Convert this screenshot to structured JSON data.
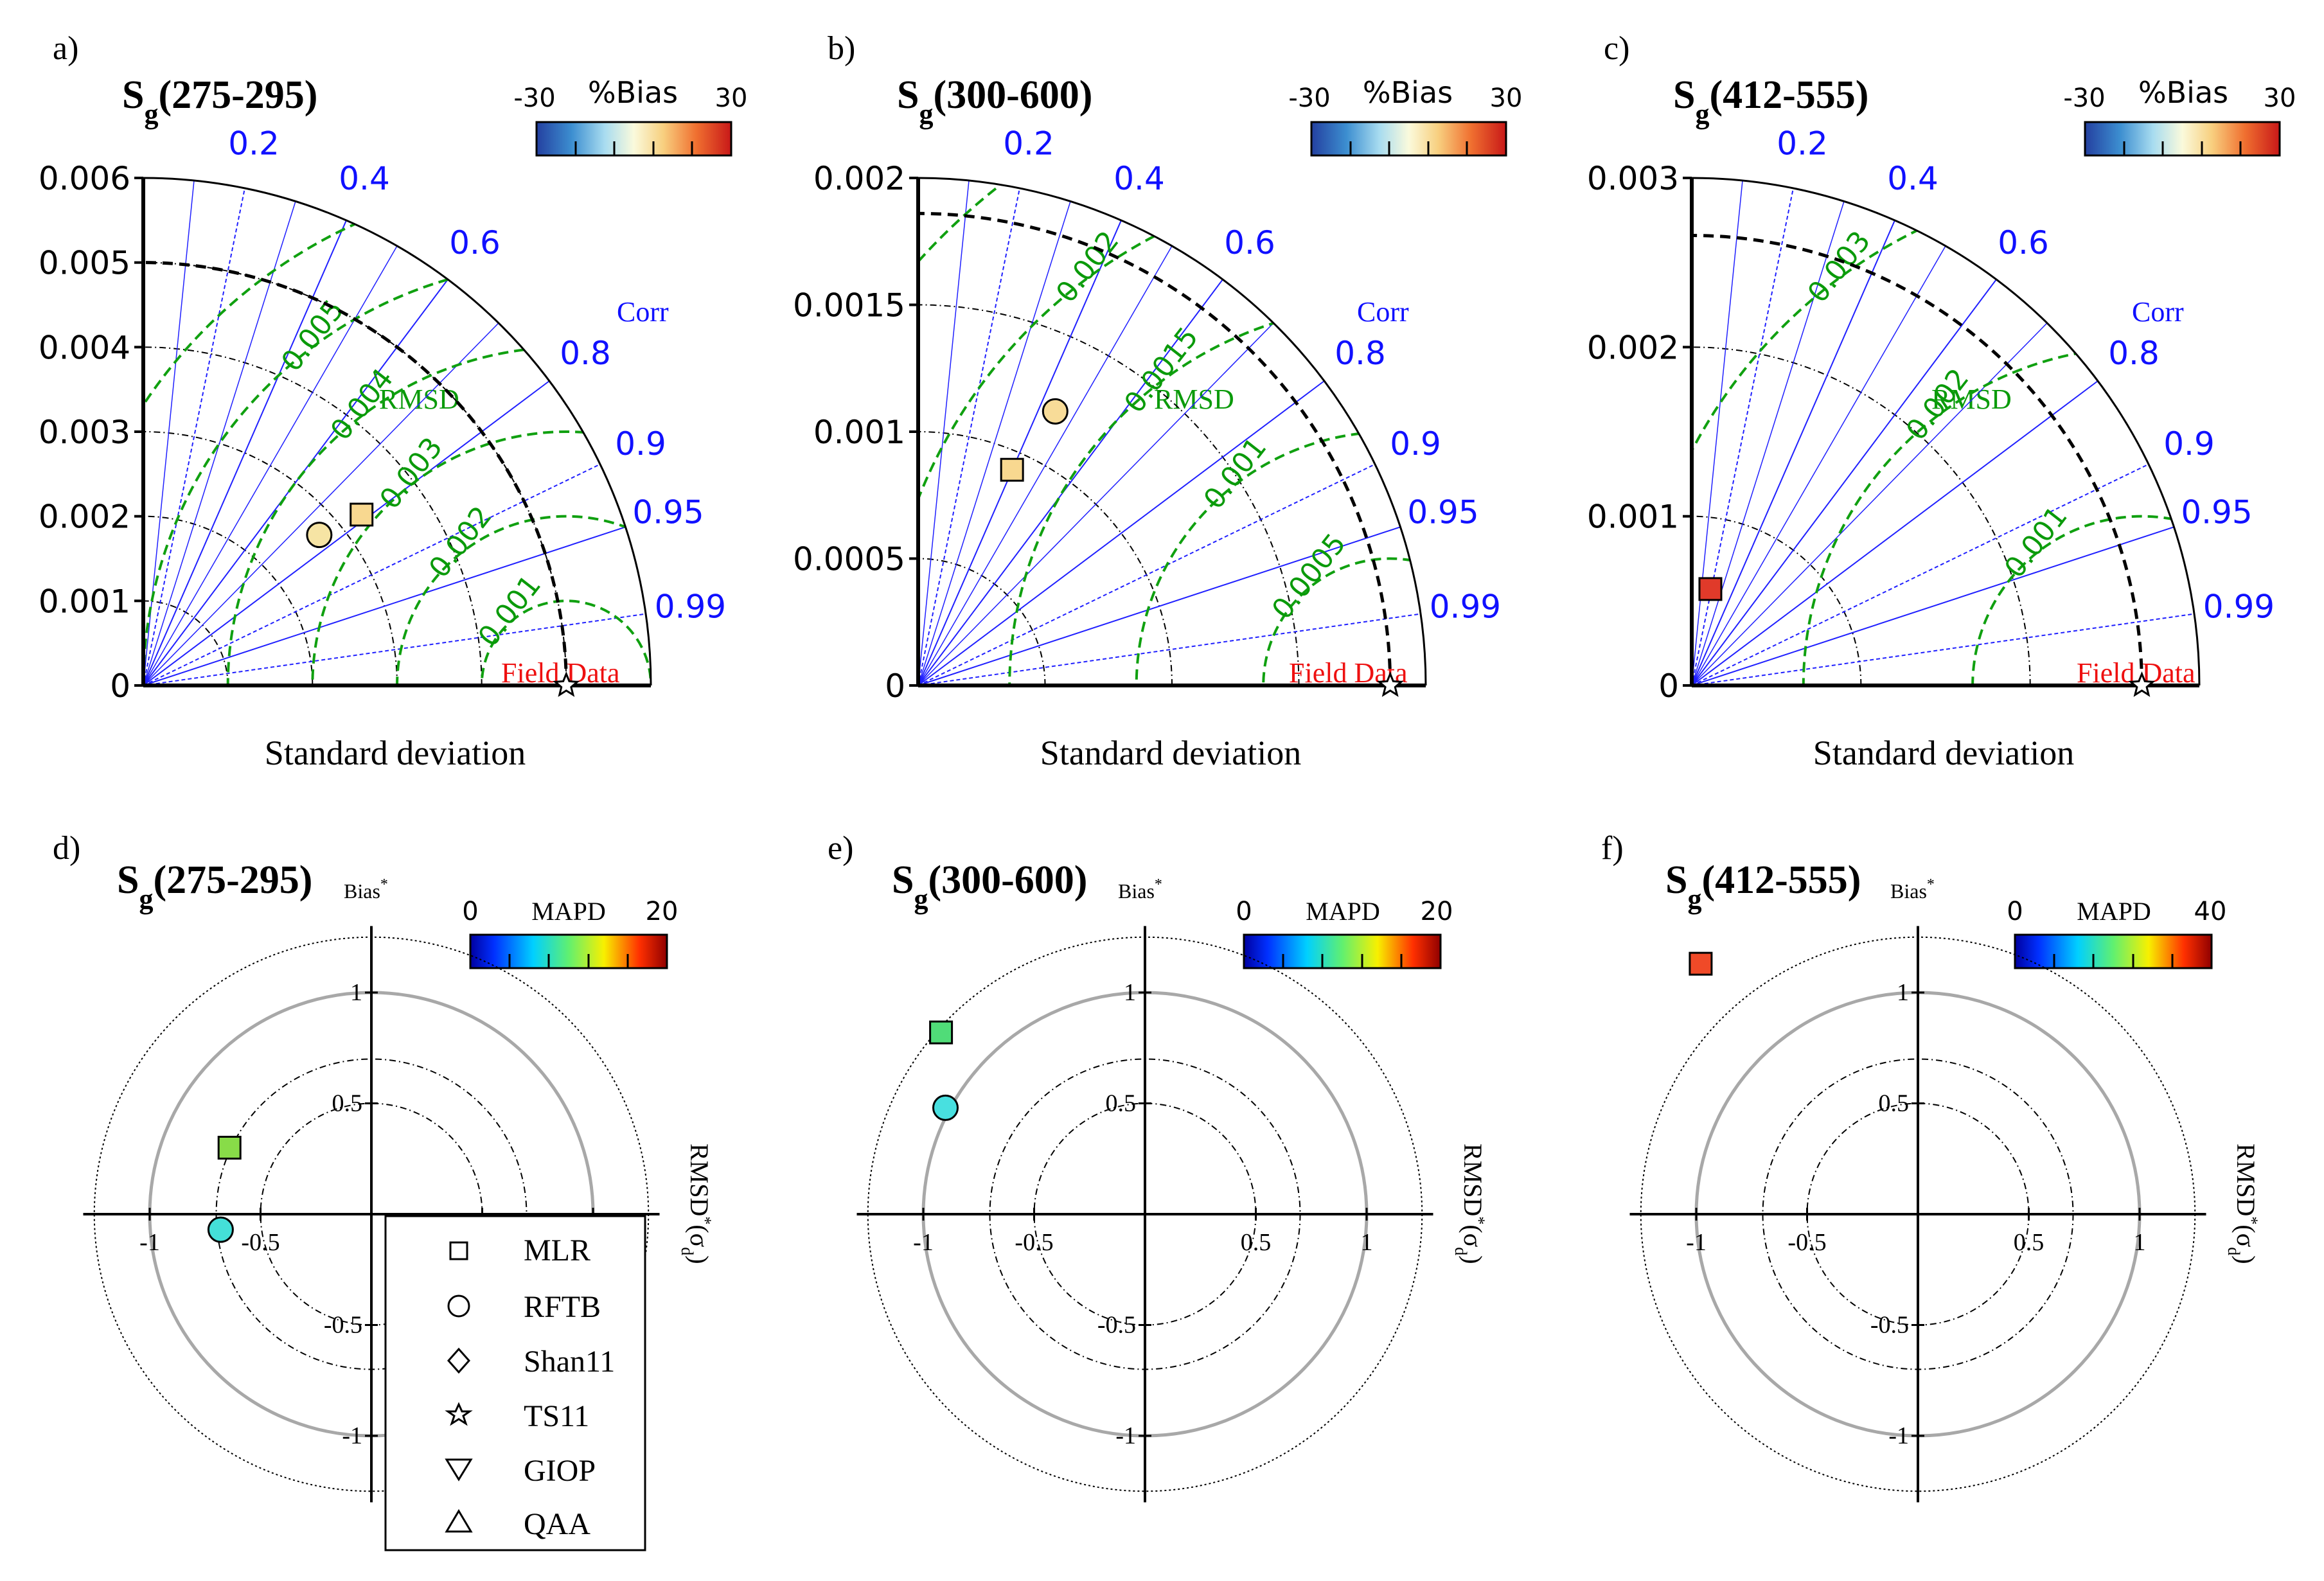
{
  "legend": {
    "items": [
      {
        "marker": "square",
        "label": "MLR"
      },
      {
        "marker": "circle",
        "label": "RFTB"
      },
      {
        "marker": "diamond",
        "label": "Shan11"
      },
      {
        "marker": "star",
        "label": "TS11"
      },
      {
        "marker": "triangle-down",
        "label": "GIOP"
      },
      {
        "marker": "triangle-up",
        "label": "QAA"
      }
    ]
  },
  "chart_data": [
    {
      "panel": "a)",
      "type": "scatter",
      "subtype": "taylor-diagram",
      "title_main": "S",
      "title_sub": "g",
      "title_range": "(275-295)",
      "xlabel": "Standard deviation",
      "corr_label": "Corr",
      "rmsd_label": "RMSD",
      "ref_label": "Field Data",
      "std_max": 0.006,
      "ref_std": 0.005,
      "std_ticks": [
        0,
        0.001,
        0.002,
        0.003,
        0.004,
        0.005,
        0.006
      ],
      "std_tick_labels": [
        "0",
        "0.001",
        "0.002",
        "0.003",
        "0.004",
        "0.005",
        "0.006"
      ],
      "corr_ticks": [
        0.2,
        0.4,
        0.6,
        0.8,
        0.9,
        0.95,
        0.99
      ],
      "corr_tick_labels": [
        "0.2",
        "0.4",
        "0.6",
        "0.8",
        "0.9",
        "0.95",
        "0.99"
      ],
      "rmsd_levels": [
        0.001,
        0.002,
        0.003,
        0.004,
        0.005,
        0.006
      ],
      "rmsd_labels": [
        {
          "value": 0.001,
          "text": "0.001"
        },
        {
          "value": 0.002,
          "text": "0.002"
        },
        {
          "value": 0.003,
          "text": "0.003"
        },
        {
          "value": 0.004,
          "text": "0.004"
        },
        {
          "value": 0.005,
          "text": "0.005"
        }
      ],
      "colorbar": {
        "label": "%Bias",
        "min_label": "-30",
        "max_label": "30",
        "min": -30,
        "max": 30
      },
      "points": [
        {
          "model": "MLR",
          "marker": "square",
          "x": 0.00258,
          "y": 0.00202,
          "color": "#f8d890"
        },
        {
          "model": "RFTB",
          "marker": "circle",
          "x": 0.00208,
          "y": 0.00178,
          "color": "#f6e4a4"
        }
      ]
    },
    {
      "panel": "b)",
      "type": "scatter",
      "subtype": "taylor-diagram",
      "title_main": "S",
      "title_sub": "g",
      "title_range": "(300-600)",
      "xlabel": "Standard deviation",
      "corr_label": "Corr",
      "rmsd_label": "RMSD",
      "ref_label": "Field Data",
      "std_max": 0.002,
      "ref_std": 0.00186,
      "std_ticks": [
        0,
        0.0005,
        0.001,
        0.0015,
        0.002
      ],
      "std_tick_labels": [
        "0",
        "0.0005",
        "0.001",
        "0.0015",
        "0.002"
      ],
      "corr_ticks": [
        0.2,
        0.4,
        0.6,
        0.8,
        0.9,
        0.95,
        0.99
      ],
      "corr_tick_labels": [
        "0.2",
        "0.4",
        "0.6",
        "0.8",
        "0.9",
        "0.95",
        "0.99"
      ],
      "rmsd_levels": [
        0.0005,
        0.001,
        0.0015,
        0.002,
        0.0025
      ],
      "rmsd_labels": [
        {
          "value": 0.0005,
          "text": "0.0005"
        },
        {
          "value": 0.001,
          "text": "0.001"
        },
        {
          "value": 0.0015,
          "text": "0.0015"
        },
        {
          "value": 0.002,
          "text": "0.002"
        }
      ],
      "colorbar": {
        "label": "%Bias",
        "min_label": "-30",
        "max_label": "30",
        "min": -30,
        "max": 30
      },
      "points": [
        {
          "model": "MLR",
          "marker": "square",
          "x": 0.00037,
          "y": 0.00085,
          "color": "#f8d890"
        },
        {
          "model": "RFTB",
          "marker": "circle",
          "x": 0.00054,
          "y": 0.00108,
          "color": "#f8dc98"
        }
      ]
    },
    {
      "panel": "c)",
      "type": "scatter",
      "subtype": "taylor-diagram",
      "title_main": "S",
      "title_sub": "g",
      "title_range": "(412-555)",
      "xlabel": "Standard deviation",
      "corr_label": "Corr",
      "rmsd_label": "RMSD",
      "ref_label": "Field Data",
      "std_max": 0.003,
      "ref_std": 0.00266,
      "std_ticks": [
        0,
        0.001,
        0.002,
        0.003
      ],
      "std_tick_labels": [
        "0",
        "0.001",
        "0.002",
        "0.003"
      ],
      "corr_ticks": [
        0.2,
        0.4,
        0.6,
        0.8,
        0.9,
        0.95,
        0.99
      ],
      "corr_tick_labels": [
        "0.2",
        "0.4",
        "0.6",
        "0.8",
        "0.9",
        "0.95",
        "0.99"
      ],
      "rmsd_levels": [
        0.001,
        0.002,
        0.003
      ],
      "rmsd_labels": [
        {
          "value": 0.001,
          "text": "0.001"
        },
        {
          "value": 0.002,
          "text": "0.002"
        },
        {
          "value": 0.003,
          "text": "0.003"
        }
      ],
      "colorbar": {
        "label": "%Bias",
        "min_label": "-30",
        "max_label": "30",
        "min": -30,
        "max": 30
      },
      "points": [
        {
          "model": "MLR",
          "marker": "square",
          "x": 0.00011,
          "y": 0.00057,
          "color": "#e03a2a"
        }
      ]
    },
    {
      "panel": "d)",
      "type": "scatter",
      "subtype": "target-diagram",
      "title_main": "S",
      "title_sub": "g",
      "title_range": "(275-295)",
      "ylabel": "Bias",
      "xlabel_main": "RMSD",
      "xlabel_paren": "(σ",
      "xlabel_sub": "d",
      "axis_tick_labels": {
        "x": [
          "-1",
          "-0.5",
          "0.5",
          "1"
        ],
        "y": [
          "1",
          "0.5",
          "-0.5",
          "-1"
        ]
      },
      "axis_ticks": [
        -1,
        -0.5,
        0.5,
        1
      ],
      "rings": [
        0.5,
        0.7,
        1.0,
        1.25
      ],
      "colorbar": {
        "label": "MAPD",
        "min_label": "0",
        "max_label": "20",
        "min": 0,
        "max": 20
      },
      "points": [
        {
          "model": "MLR",
          "marker": "square",
          "x": -0.64,
          "y": 0.3,
          "color": "#88dc48"
        },
        {
          "model": "RFTB",
          "marker": "circle",
          "x": -0.68,
          "y": -0.07,
          "color": "#44e0d8"
        }
      ]
    },
    {
      "panel": "e)",
      "type": "scatter",
      "subtype": "target-diagram",
      "title_main": "S",
      "title_sub": "g",
      "title_range": "(300-600)",
      "ylabel": "Bias",
      "xlabel_main": "RMSD",
      "xlabel_paren": "(σ",
      "xlabel_sub": "d",
      "axis_tick_labels": {
        "x": [
          "-1",
          "-0.5",
          "0.5",
          "1"
        ],
        "y": [
          "1",
          "0.5",
          "-0.5",
          "-1"
        ]
      },
      "axis_ticks": [
        -1,
        -0.5,
        0.5,
        1
      ],
      "rings": [
        0.5,
        0.7,
        1.0,
        1.25
      ],
      "colorbar": {
        "label": "MAPD",
        "min_label": "0",
        "max_label": "20",
        "min": 0,
        "max": 20
      },
      "points": [
        {
          "model": "MLR",
          "marker": "square",
          "x": -0.92,
          "y": 0.82,
          "color": "#50dc78"
        },
        {
          "model": "RFTB",
          "marker": "circle",
          "x": -0.9,
          "y": 0.48,
          "color": "#48e0e0"
        }
      ]
    },
    {
      "panel": "f)",
      "type": "scatter",
      "subtype": "target-diagram",
      "title_main": "S",
      "title_sub": "g",
      "title_range": "(412-555)",
      "ylabel": "Bias",
      "xlabel_main": "RMSD",
      "xlabel_paren": "(σ",
      "xlabel_sub": "d",
      "axis_tick_labels": {
        "x": [
          "-1",
          "-0.5",
          "0.5",
          "1"
        ],
        "y": [
          "1",
          "0.5",
          "-0.5",
          "-1"
        ]
      },
      "axis_ticks": [
        -1,
        -0.5,
        0.5,
        1
      ],
      "rings": [
        0.5,
        0.7,
        1.0,
        1.25
      ],
      "colorbar": {
        "label": "MAPD",
        "min_label": "0",
        "max_label": "40",
        "min": 0,
        "max": 40
      },
      "points": [
        {
          "model": "MLR",
          "marker": "square",
          "x": -0.98,
          "y": 1.13,
          "color": "#f04a28"
        }
      ]
    }
  ]
}
